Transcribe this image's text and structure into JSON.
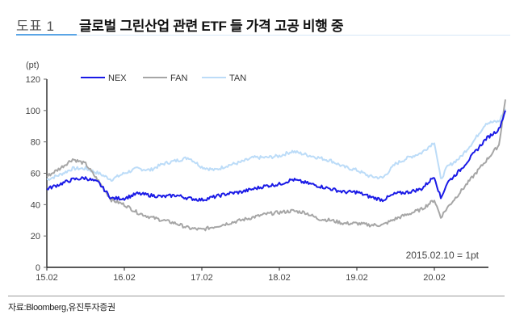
{
  "header": {
    "figure_label": "도표 1",
    "title": "글로벌 그린산업 관련 ETF 들 가격 고공 비행 중"
  },
  "footer": {
    "source": "자료:Bloomberg,유진투자증권"
  },
  "colors": {
    "NEX": "#1a1ae6",
    "FAN": "#a6a6a6",
    "TAN": "#bcdcf8",
    "accent": "#5aa5e6"
  },
  "chart_data": {
    "type": "line",
    "title": "글로벌 그린산업 관련 ETF 들 가격 고공 비행 중",
    "xlabel": "",
    "ylabel": "(pt)",
    "ylim": [
      0,
      120
    ],
    "yticks": [
      0,
      20,
      40,
      60,
      80,
      100,
      120
    ],
    "xticks": [
      "15.02",
      "16.02",
      "17.02",
      "18.02",
      "19.02",
      "20.02"
    ],
    "grid": false,
    "legend_position": "top",
    "annotation": "2015.02.10 = 1pt",
    "x": [
      "15.02",
      "15.04",
      "15.06",
      "15.08",
      "15.10",
      "15.12",
      "16.02",
      "16.04",
      "16.06",
      "16.08",
      "16.10",
      "16.12",
      "17.02",
      "17.04",
      "17.06",
      "17.08",
      "17.10",
      "17.12",
      "18.02",
      "18.04",
      "18.06",
      "18.08",
      "18.10",
      "18.12",
      "19.02",
      "19.04",
      "19.06",
      "19.08",
      "19.10",
      "19.12",
      "20.02",
      "20.03",
      "20.04",
      "20.06",
      "20.08",
      "20.10",
      "20.12",
      "20.13"
    ],
    "series": [
      {
        "name": "NEX",
        "values": [
          50,
          53,
          56,
          57,
          54,
          44,
          44,
          47,
          46,
          45,
          46,
          44,
          43,
          45,
          47,
          48,
          50,
          52,
          53,
          56,
          54,
          52,
          50,
          48,
          48,
          45,
          43,
          47,
          48,
          50,
          58,
          44,
          54,
          62,
          72,
          82,
          88,
          100
        ]
      },
      {
        "name": "FAN",
        "values": [
          58,
          63,
          69,
          66,
          55,
          43,
          40,
          35,
          32,
          30,
          28,
          25,
          24,
          26,
          28,
          30,
          32,
          34,
          35,
          36,
          35,
          31,
          30,
          28,
          28,
          27,
          27,
          31,
          34,
          37,
          43,
          32,
          38,
          48,
          58,
          68,
          78,
          107
        ]
      },
      {
        "name": "TAN",
        "values": [
          56,
          59,
          63,
          63,
          60,
          56,
          60,
          63,
          62,
          66,
          68,
          70,
          64,
          62,
          65,
          67,
          70,
          70,
          71,
          74,
          72,
          70,
          68,
          64,
          62,
          58,
          57,
          66,
          70,
          73,
          80,
          56,
          64,
          70,
          80,
          92,
          93,
          101
        ]
      }
    ]
  }
}
